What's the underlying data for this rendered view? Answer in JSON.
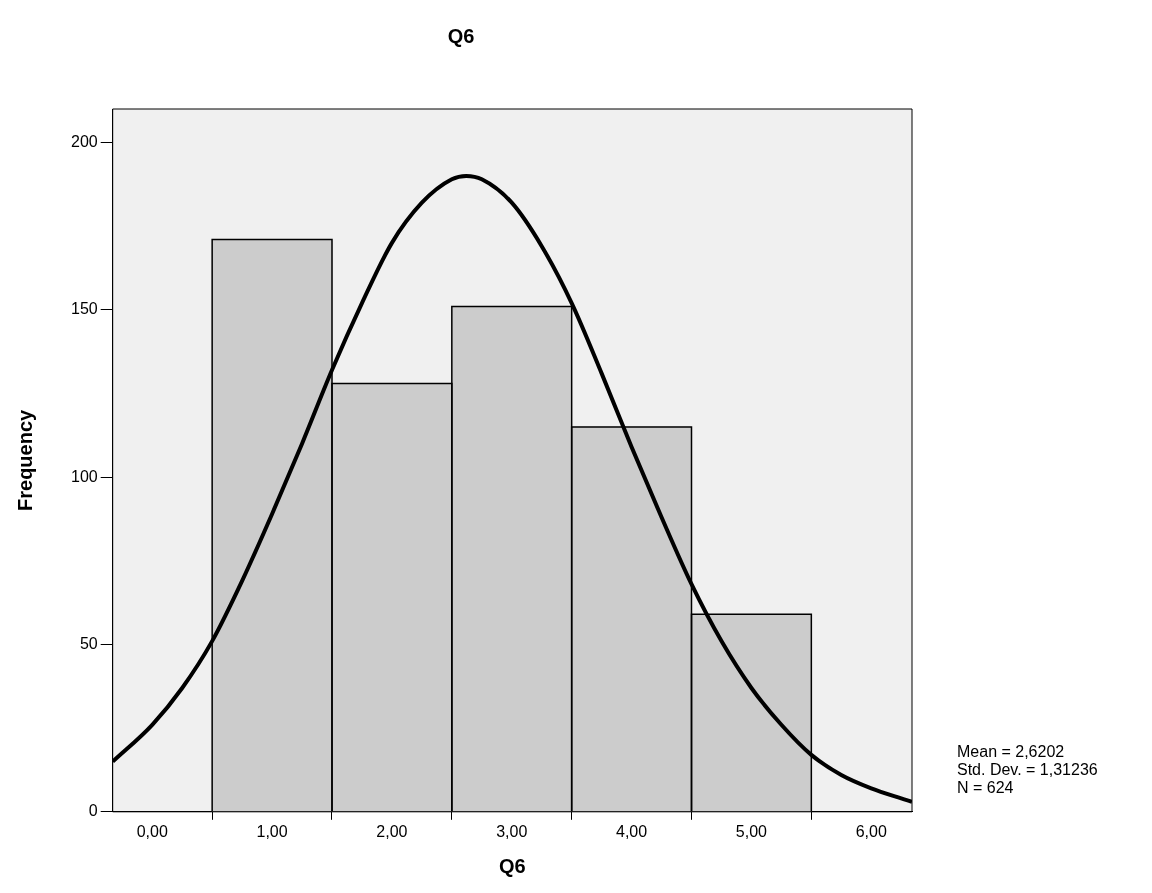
{
  "chart_data": {
    "type": "histogram",
    "title": "Q6",
    "xlabel": "Q6",
    "ylabel": "Frequency",
    "bins": [
      0.5,
      1.5,
      2.5,
      3.5,
      4.5,
      5.5
    ],
    "series": [
      {
        "color": "#cccccc",
        "values": [
          171,
          128,
          151,
          115,
          59
        ]
      },
      {
        "type": "line",
        "color": "#000000",
        "x": [
          -0.33,
          0,
          0.25,
          0.5,
          0.75,
          1,
          1.25,
          1.5,
          1.75,
          2,
          2.25,
          2.5,
          2.62,
          2.75,
          3,
          3.25,
          3.5,
          3.75,
          4,
          4.25,
          4.5,
          4.75,
          5,
          5.25,
          5.5,
          5.75,
          6,
          6.25,
          6.34
        ],
        "values": [
          15,
          26,
          37,
          51,
          69,
          89,
          110,
          132,
          152,
          170,
          182,
          189,
          190,
          189,
          182,
          169,
          152,
          131,
          109,
          88,
          68,
          51,
          37,
          26,
          17,
          11,
          7,
          4,
          3
        ]
      }
    ],
    "xlim": [
      -0.33,
      6.34
    ],
    "xticks": [
      {
        "value": 0,
        "label": "0,00"
      },
      {
        "value": 1,
        "label": "1,00"
      },
      {
        "value": 2,
        "label": "2,00"
      },
      {
        "value": 3,
        "label": "3,00"
      },
      {
        "value": 4,
        "label": "4,00"
      },
      {
        "value": 5,
        "label": "5,00"
      },
      {
        "value": 6,
        "label": "6,00"
      }
    ],
    "ylim": [
      0,
      210
    ],
    "yticks": [
      0,
      50,
      100,
      150,
      200
    ],
    "grid": false,
    "legend": false,
    "marker": "none",
    "line_style": "solid",
    "annotations": [
      "Mean = 2,6202",
      "Std. Dev. = 1,31236",
      "N = 624"
    ]
  }
}
